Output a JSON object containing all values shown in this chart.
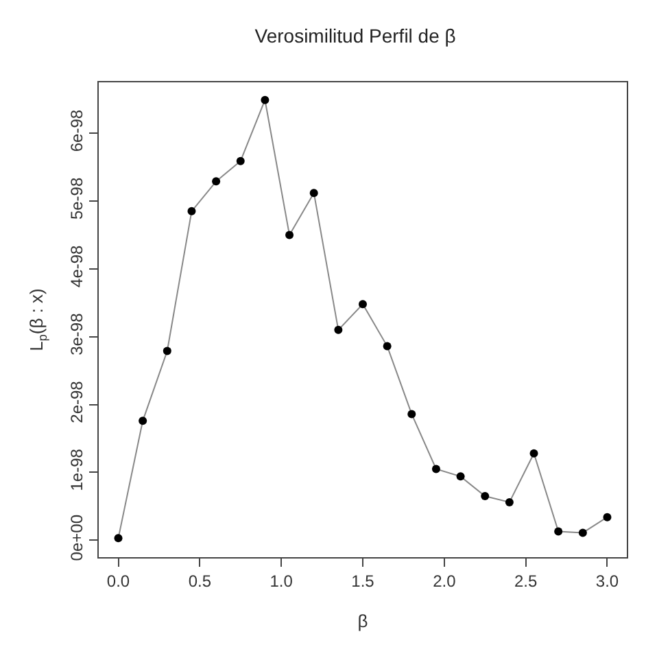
{
  "chart_data": {
    "type": "line",
    "title": "Verosimilitud Perfil de β",
    "xlabel": "β",
    "ylabel": "L$_{p}$(β : x)",
    "x": [
      0,
      0.15,
      0.3,
      0.45,
      0.6,
      0.75,
      0.9,
      1.05,
      1.2,
      1.35,
      1.5,
      1.65,
      1.8,
      1.95,
      2.1,
      2.25,
      2.4,
      2.55,
      2.7,
      2.85,
      3.0
    ],
    "series": [
      {
        "color": "#000000",
        "values": [
          3e-100,
          1.76e-98,
          2.79e-98,
          4.85e-98,
          5.29e-98,
          5.59e-98,
          6.49e-98,
          4.5e-98,
          5.12e-98,
          3.1e-98,
          3.48e-98,
          2.86e-98,
          1.86e-98,
          1.05e-98,
          9.4e-99,
          6.5e-99,
          5.6e-99,
          1.28e-98,
          1.3e-99,
          1.1e-99,
          3.4e-99
        ]
      }
    ],
    "xlim": [
      -0.12,
      3.12
    ],
    "ylim": [
      -2.5e-99,
      6.75e-98
    ],
    "xticks": [
      {
        "value": 0,
        "label": "0.0"
      },
      {
        "value": 0.5,
        "label": "0.5"
      },
      {
        "value": 1,
        "label": "1.0"
      },
      {
        "value": 1.5,
        "label": "1.5"
      },
      {
        "value": 2,
        "label": "2.0"
      },
      {
        "value": 2.5,
        "label": "2.5"
      },
      {
        "value": 3,
        "label": "3.0"
      }
    ],
    "yticks": [
      {
        "value": 0,
        "label": "0e+00"
      },
      {
        "value": 1e-98,
        "label": "1e-98"
      },
      {
        "value": 2e-98,
        "label": "2e-98"
      },
      {
        "value": 3e-98,
        "label": "3e-98"
      },
      {
        "value": 4e-98,
        "label": "4e-98"
      },
      {
        "value": 5e-98,
        "label": "5e-98"
      },
      {
        "value": 6e-98,
        "label": "6e-98"
      }
    ],
    "marker": "circle",
    "line_style": "solid",
    "legend": false
  }
}
